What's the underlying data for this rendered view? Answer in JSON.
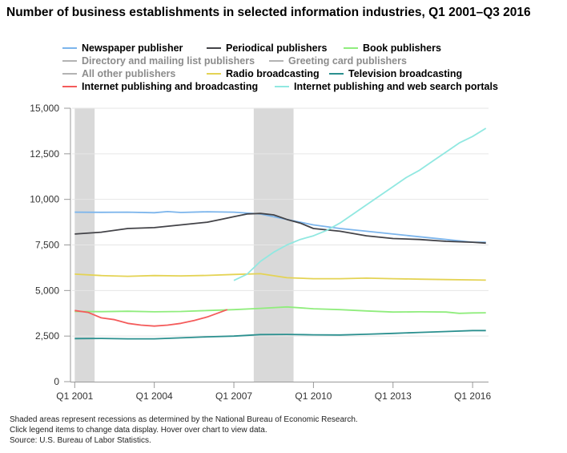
{
  "chart_data": {
    "type": "line",
    "title": "Number of business establishments in selected information industries, Q1 2001–Q3 2016",
    "xlabel": "",
    "ylabel": "",
    "ylim": [
      0,
      15000
    ],
    "y_ticks": [
      "15,000",
      "12,500",
      "10,000",
      "7,500",
      "5,000",
      "2,500",
      "0"
    ],
    "y_tick_values": [
      15000,
      12500,
      10000,
      7500,
      5000,
      2500,
      0
    ],
    "x_ticks": [
      "Q1 2001",
      "Q1 2004",
      "Q1 2007",
      "Q1 2010",
      "Q1 2013",
      "Q1 2016"
    ],
    "x_tick_values": [
      2001,
      2004,
      2007,
      2010,
      2013,
      2016
    ],
    "xlim": [
      2000.9,
      2016.6
    ],
    "recessions": [
      [
        2001.0,
        2001.75
      ],
      [
        2007.75,
        2009.25
      ]
    ],
    "series": [
      {
        "name": "Newspaper publisher",
        "color": "#7cb5ec",
        "active": true,
        "x": [
          2001,
          2002,
          2003,
          2004,
          2004.5,
          2005,
          2006,
          2007,
          2008,
          2009,
          2010,
          2011,
          2012,
          2013,
          2014,
          2015,
          2016,
          2016.5
        ],
        "values": [
          9300,
          9290,
          9300,
          9270,
          9330,
          9280,
          9320,
          9300,
          9200,
          8900,
          8600,
          8400,
          8250,
          8100,
          7950,
          7800,
          7650,
          7650
        ]
      },
      {
        "name": "Periodical publishers",
        "color": "#434348",
        "active": true,
        "x": [
          2001,
          2002,
          2003,
          2004,
          2005,
          2006,
          2006.5,
          2007,
          2007.5,
          2008,
          2008.5,
          2009,
          2009.5,
          2010,
          2011,
          2012,
          2013,
          2014,
          2015,
          2016,
          2016.5
        ],
        "values": [
          8100,
          8200,
          8400,
          8450,
          8600,
          8750,
          8900,
          9050,
          9200,
          9230,
          9150,
          8900,
          8700,
          8400,
          8250,
          8000,
          7850,
          7800,
          7700,
          7650,
          7600
        ]
      },
      {
        "name": "Book publishers",
        "color": "#90ed7d",
        "active": true,
        "x": [
          2001,
          2002,
          2003,
          2004,
          2005,
          2006,
          2007,
          2008,
          2009,
          2010,
          2011,
          2012,
          2013,
          2014,
          2015,
          2015.5,
          2016,
          2016.5
        ],
        "values": [
          3850,
          3840,
          3860,
          3830,
          3850,
          3900,
          3950,
          4020,
          4100,
          4000,
          3950,
          3880,
          3820,
          3830,
          3820,
          3750,
          3770,
          3780
        ]
      },
      {
        "name": "Directory and mailing list publishers",
        "color": "#f7a35c",
        "active": false,
        "x": [],
        "values": []
      },
      {
        "name": "Greeting card publishers",
        "color": "#8085e9",
        "active": false,
        "x": [],
        "values": []
      },
      {
        "name": "All other publishers",
        "color": "#f15c80",
        "active": false,
        "x": [],
        "values": []
      },
      {
        "name": "Radio broadcasting",
        "color": "#e4d354",
        "active": true,
        "x": [
          2001,
          2002,
          2003,
          2004,
          2005,
          2006,
          2007,
          2008,
          2009,
          2010,
          2011,
          2012,
          2013,
          2014,
          2015,
          2016,
          2016.5
        ],
        "values": [
          5900,
          5820,
          5780,
          5820,
          5800,
          5830,
          5880,
          5920,
          5700,
          5650,
          5650,
          5680,
          5650,
          5620,
          5600,
          5580,
          5570
        ]
      },
      {
        "name": "Television broadcasting",
        "color": "#2b908f",
        "active": true,
        "x": [
          2001,
          2002,
          2003,
          2004,
          2005,
          2006,
          2007,
          2008,
          2009,
          2010,
          2011,
          2012,
          2013,
          2014,
          2015,
          2016,
          2016.5
        ],
        "values": [
          2360,
          2370,
          2350,
          2350,
          2400,
          2460,
          2500,
          2580,
          2590,
          2570,
          2560,
          2600,
          2650,
          2700,
          2750,
          2800,
          2800
        ]
      },
      {
        "name": "Internet publishing and broadcasting",
        "color": "#f45b5b",
        "active": true,
        "x": [
          2001,
          2001.5,
          2002,
          2002.5,
          2003,
          2003.5,
          2004,
          2004.5,
          2005,
          2005.5,
          2006,
          2006.75
        ],
        "values": [
          3900,
          3800,
          3500,
          3400,
          3200,
          3100,
          3050,
          3100,
          3200,
          3350,
          3550,
          3950
        ]
      },
      {
        "name": "Internet publishing and web search portals",
        "color": "#91e8e1",
        "active": true,
        "x": [
          2007,
          2007.5,
          2008,
          2008.5,
          2009,
          2009.5,
          2010,
          2010.5,
          2011,
          2011.5,
          2012,
          2012.5,
          2013,
          2013.5,
          2014,
          2014.5,
          2015,
          2015.5,
          2016,
          2016.5
        ],
        "values": [
          5550,
          5900,
          6600,
          7100,
          7500,
          7800,
          8000,
          8300,
          8700,
          9200,
          9700,
          10200,
          10700,
          11200,
          11600,
          12100,
          12600,
          13100,
          13450,
          13900
        ]
      }
    ]
  },
  "footnote": {
    "line1": "Shaded areas represent recessions as determined by the National Bureau of Economic Research.",
    "line2": "Click legend items to change data display. Hover over chart to view data.",
    "line3": "Source: U.S. Bureau of Labor Statistics."
  }
}
